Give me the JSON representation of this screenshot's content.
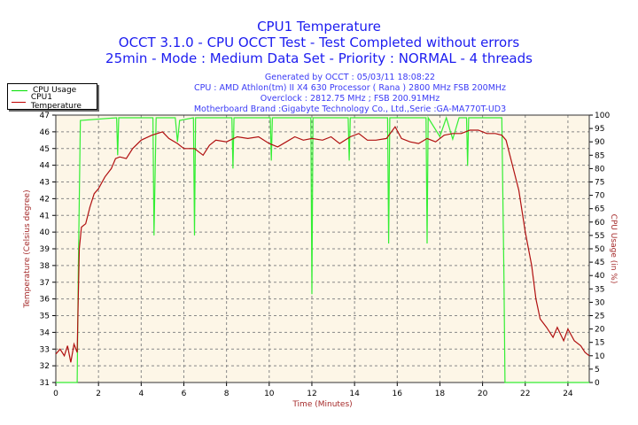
{
  "header": {
    "title": "CPU1 Temperature",
    "line2": "OCCT 3.1.0 - CPU OCCT Test - Test Completed without errors",
    "line3": "25min - Mode : Medium Data Set - Priority : NORMAL - 4 threads",
    "info": [
      "Generated by OCCT : 05/03/11 18:08:22",
      "CPU : AMD Athlon(tm) II X4 630 Processor ( Rana ) 2800 MHz FSB 200MHz",
      "Overclock : 2812.75 MHz ; FSB 200.91MHz",
      "Motherboard Brand :Gigabyte Technology Co., Ltd.,Serie :GA-MA770T-UD3"
    ]
  },
  "legend": [
    {
      "label": "CPU Usage",
      "color": "#00e000"
    },
    {
      "label": "CPU1 Temperature",
      "color": "#c00000"
    }
  ],
  "chart_data": {
    "type": "line",
    "title": "CPU1 Temperature",
    "xlabel": "Time (Minutes)",
    "ylabel": "Temperature (Celsius degree)",
    "y2label": "CPU Usage (in %)",
    "xlim": [
      0,
      25
    ],
    "ylim": [
      31,
      47
    ],
    "y2lim": [
      0,
      100
    ],
    "xticks": [
      0,
      2,
      4,
      6,
      8,
      10,
      12,
      14,
      16,
      18,
      20,
      22,
      24
    ],
    "yticks": [
      31,
      32,
      33,
      34,
      35,
      36,
      37,
      38,
      39,
      40,
      41,
      42,
      43,
      44,
      45,
      46,
      47
    ],
    "y2ticks": [
      0,
      5,
      10,
      15,
      20,
      25,
      30,
      35,
      40,
      45,
      50,
      55,
      60,
      65,
      70,
      75,
      80,
      85,
      90,
      95,
      100
    ],
    "grid": true,
    "series": [
      {
        "name": "CPU1 Temperature",
        "axis": "left",
        "color": "#b01010",
        "points": [
          [
            0,
            32.7
          ],
          [
            0.2,
            33
          ],
          [
            0.4,
            32.6
          ],
          [
            0.55,
            33.2
          ],
          [
            0.7,
            32.2
          ],
          [
            0.85,
            33.3
          ],
          [
            1.0,
            32.8
          ],
          [
            1.05,
            36
          ],
          [
            1.1,
            39
          ],
          [
            1.2,
            40.3
          ],
          [
            1.4,
            40.5
          ],
          [
            1.6,
            41.5
          ],
          [
            1.8,
            42.3
          ],
          [
            2.0,
            42.6
          ],
          [
            2.3,
            43.3
          ],
          [
            2.6,
            43.8
          ],
          [
            2.8,
            44.4
          ],
          [
            3.0,
            44.5
          ],
          [
            3.3,
            44.4
          ],
          [
            3.6,
            45
          ],
          [
            4.0,
            45.5
          ],
          [
            4.5,
            45.8
          ],
          [
            5.0,
            46
          ],
          [
            5.3,
            45.6
          ],
          [
            5.7,
            45.3
          ],
          [
            6.0,
            45
          ],
          [
            6.5,
            45
          ],
          [
            6.9,
            44.6
          ],
          [
            7.2,
            45.2
          ],
          [
            7.5,
            45.5
          ],
          [
            8.0,
            45.4
          ],
          [
            8.5,
            45.7
          ],
          [
            9.0,
            45.6
          ],
          [
            9.5,
            45.7
          ],
          [
            10.0,
            45.3
          ],
          [
            10.4,
            45.1
          ],
          [
            10.8,
            45.4
          ],
          [
            11.2,
            45.7
          ],
          [
            11.6,
            45.5
          ],
          [
            12.0,
            45.6
          ],
          [
            12.5,
            45.5
          ],
          [
            12.9,
            45.7
          ],
          [
            13.3,
            45.3
          ],
          [
            13.8,
            45.7
          ],
          [
            14.2,
            45.9
          ],
          [
            14.6,
            45.5
          ],
          [
            15.0,
            45.5
          ],
          [
            15.5,
            45.6
          ],
          [
            15.9,
            46.3
          ],
          [
            16.2,
            45.6
          ],
          [
            16.6,
            45.4
          ],
          [
            17.0,
            45.3
          ],
          [
            17.4,
            45.6
          ],
          [
            17.8,
            45.4
          ],
          [
            18.2,
            45.8
          ],
          [
            18.6,
            45.9
          ],
          [
            19.0,
            45.9
          ],
          [
            19.4,
            46.1
          ],
          [
            19.8,
            46.1
          ],
          [
            20.2,
            45.9
          ],
          [
            20.6,
            45.9
          ],
          [
            20.9,
            45.8
          ],
          [
            21.1,
            45.5
          ],
          [
            21.4,
            44
          ],
          [
            21.7,
            42.5
          ],
          [
            22.0,
            40
          ],
          [
            22.3,
            38
          ],
          [
            22.5,
            36
          ],
          [
            22.7,
            34.8
          ],
          [
            23.0,
            34.3
          ],
          [
            23.3,
            33.7
          ],
          [
            23.5,
            34.3
          ],
          [
            23.8,
            33.5
          ],
          [
            24.0,
            34.2
          ],
          [
            24.3,
            33.5
          ],
          [
            24.6,
            33.2
          ],
          [
            24.8,
            32.8
          ],
          [
            25.0,
            32.6
          ]
        ]
      },
      {
        "name": "CPU Usage",
        "axis": "right",
        "color": "#33ee33",
        "points": [
          [
            0,
            0
          ],
          [
            1.0,
            0
          ],
          [
            1.05,
            40
          ],
          [
            1.15,
            98
          ],
          [
            2.85,
            99
          ],
          [
            2.9,
            85
          ],
          [
            2.95,
            99
          ],
          [
            4.55,
            99
          ],
          [
            4.6,
            55
          ],
          [
            4.7,
            99
          ],
          [
            5.6,
            99
          ],
          [
            5.7,
            90
          ],
          [
            5.8,
            98
          ],
          [
            6.45,
            99
          ],
          [
            6.5,
            55
          ],
          [
            6.55,
            99
          ],
          [
            8.25,
            99
          ],
          [
            8.3,
            80
          ],
          [
            8.35,
            99
          ],
          [
            10.05,
            99
          ],
          [
            10.1,
            83
          ],
          [
            10.15,
            99
          ],
          [
            11.95,
            99
          ],
          [
            12.0,
            33
          ],
          [
            12.05,
            99
          ],
          [
            13.7,
            99
          ],
          [
            13.75,
            83
          ],
          [
            13.8,
            99
          ],
          [
            15.55,
            99
          ],
          [
            15.6,
            52
          ],
          [
            15.65,
            99
          ],
          [
            17.35,
            99
          ],
          [
            17.4,
            52
          ],
          [
            17.45,
            99
          ],
          [
            18.0,
            92
          ],
          [
            18.3,
            99
          ],
          [
            18.6,
            91
          ],
          [
            18.9,
            99
          ],
          [
            19.25,
            99
          ],
          [
            19.3,
            81
          ],
          [
            19.35,
            99
          ],
          [
            20.9,
            99
          ],
          [
            21.0,
            40
          ],
          [
            21.05,
            0
          ],
          [
            25,
            0
          ]
        ]
      }
    ]
  }
}
